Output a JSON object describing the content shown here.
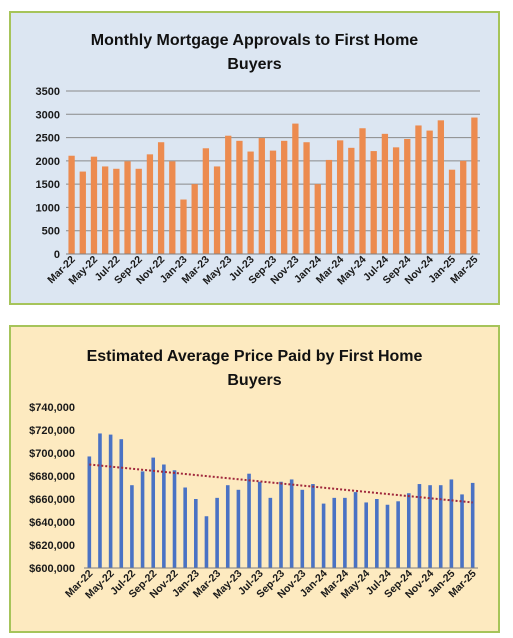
{
  "chart_data": [
    {
      "type": "bar",
      "title_line1": "Monthly Mortgage Approvals to First Home",
      "title_line2": "Buyers",
      "categories": [
        "Mar-22",
        "Apr-22",
        "May-22",
        "Jun-22",
        "Jul-22",
        "Aug-22",
        "Sep-22",
        "Oct-22",
        "Nov-22",
        "Dec-22",
        "Jan-23",
        "Feb-23",
        "Mar-23",
        "Apr-23",
        "May-23",
        "Jun-23",
        "Jul-23",
        "Aug-23",
        "Sep-23",
        "Oct-23",
        "Nov-23",
        "Dec-23",
        "Jan-24",
        "Feb-24",
        "Mar-24",
        "Apr-24",
        "May-24",
        "Jun-24",
        "Jul-24",
        "Aug-24",
        "Sep-24",
        "Oct-24",
        "Nov-24",
        "Dec-24",
        "Jan-25",
        "Feb-25",
        "Mar-25"
      ],
      "shown_xticks": [
        "Mar-22",
        "May-22",
        "Jul-22",
        "Sep-22",
        "Nov-22",
        "Jan-23",
        "Mar-23",
        "May-23",
        "Jul-23",
        "Sep-23",
        "Nov-23",
        "Jan-24",
        "Mar-24",
        "May-24",
        "Jul-24",
        "Sep-24",
        "Nov-24",
        "Jan-25",
        "Mar-25"
      ],
      "values": [
        2110,
        1770,
        2090,
        1880,
        1830,
        1990,
        1830,
        2140,
        2400,
        1990,
        1170,
        1500,
        2270,
        1880,
        2540,
        2430,
        2200,
        2490,
        2220,
        2430,
        2800,
        2400,
        1500,
        2020,
        2440,
        2280,
        2700,
        2210,
        2580,
        2290,
        2470,
        2760,
        2650,
        2870,
        1810,
        2000,
        2930
      ],
      "ylim": [
        0,
        3500
      ],
      "yticks": [
        "0",
        "500",
        "1000",
        "1500",
        "2000",
        "2500",
        "3000",
        "3500"
      ],
      "grid": true,
      "bar_color": "#ec8b4f",
      "background": "#dce6f2"
    },
    {
      "type": "bar",
      "title_line1": "Estimated Average Price Paid by First Home",
      "title_line2": "Buyers",
      "categories": [
        "Mar-22",
        "Apr-22",
        "May-22",
        "Jun-22",
        "Jul-22",
        "Aug-22",
        "Sep-22",
        "Oct-22",
        "Nov-22",
        "Dec-22",
        "Jan-23",
        "Feb-23",
        "Mar-23",
        "Apr-23",
        "May-23",
        "Jun-23",
        "Jul-23",
        "Aug-23",
        "Sep-23",
        "Oct-23",
        "Nov-23",
        "Dec-23",
        "Jan-24",
        "Feb-24",
        "Mar-24",
        "Apr-24",
        "May-24",
        "Jun-24",
        "Jul-24",
        "Aug-24",
        "Sep-24",
        "Oct-24",
        "Nov-24",
        "Dec-24",
        "Jan-25",
        "Feb-25",
        "Mar-25"
      ],
      "shown_xticks": [
        "Mar-22",
        "May-22",
        "Jul-22",
        "Sep-22",
        "Nov-22",
        "Jan-23",
        "Mar-23",
        "May-23",
        "Jul-23",
        "Sep-23",
        "Nov-23",
        "Jan-24",
        "Mar-24",
        "May-24",
        "Jul-24",
        "Sep-24",
        "Nov-24",
        "Jan-25",
        "Mar-25"
      ],
      "values": [
        697000,
        717000,
        716000,
        712000,
        672000,
        684000,
        696000,
        690000,
        685000,
        670000,
        660000,
        645000,
        661000,
        672000,
        668000,
        682000,
        675000,
        661000,
        675000,
        677000,
        668000,
        673000,
        656000,
        661000,
        661000,
        666000,
        657000,
        660000,
        655000,
        658000,
        665000,
        673000,
        672000,
        672000,
        677000,
        664000,
        674000
      ],
      "ylim": [
        600000,
        740000
      ],
      "yticks": [
        "$600,000",
        "$620,000",
        "$640,000",
        "$660,000",
        "$680,000",
        "$700,000",
        "$720,000",
        "$740,000"
      ],
      "trendline": {
        "start": 690000,
        "end": 657000
      },
      "grid": false,
      "bar_color": "#4a72c4",
      "trend_color": "#a0283c",
      "background": "#fdeac0"
    }
  ]
}
